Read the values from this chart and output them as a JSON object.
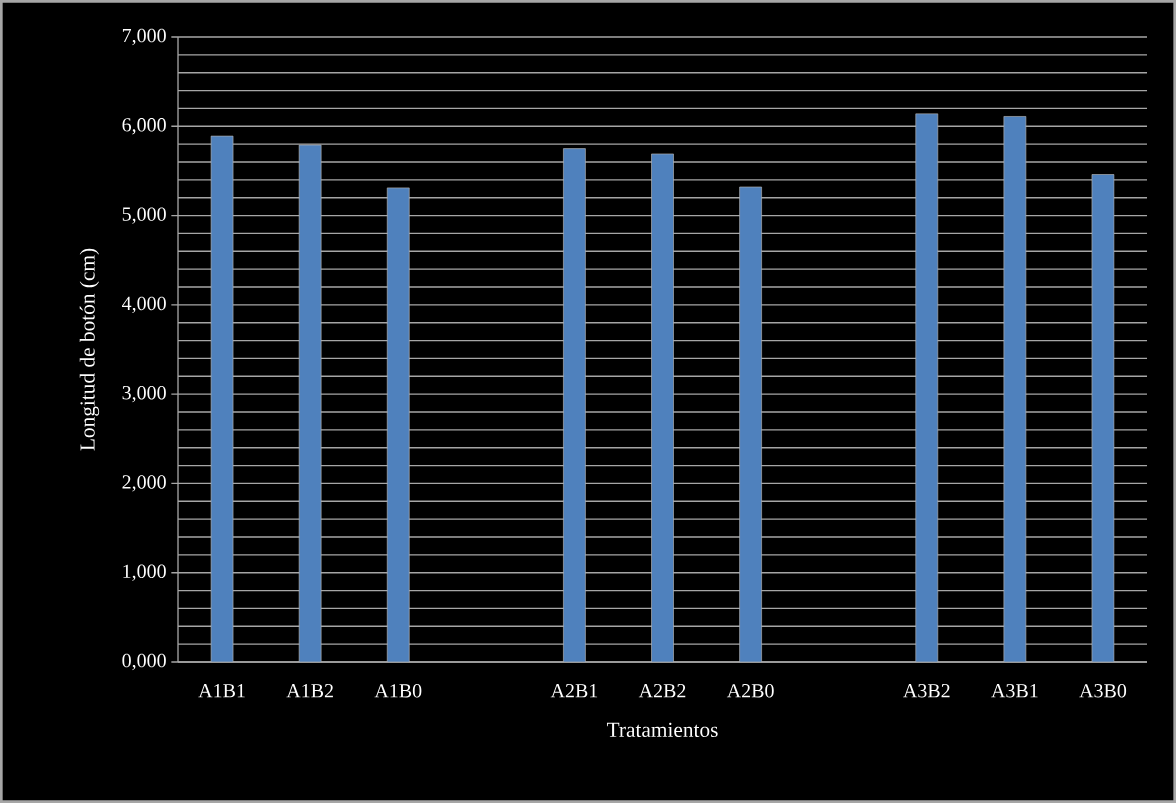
{
  "chart_data": {
    "type": "bar",
    "xlabel": "Tratamientos",
    "ylabel": "Longitud de botón (cm)",
    "categories": [
      "A1B1",
      "A1B2",
      "A1B0",
      null,
      "A2B1",
      "A2B2",
      "A2B0",
      null,
      "A3B2",
      "A3B1",
      "A3B0"
    ],
    "values": [
      5890,
      5790,
      5310,
      null,
      5750,
      5690,
      5320,
      null,
      6140,
      6110,
      5460
    ],
    "color": "#4f81bd",
    "ylim": [
      0,
      7000
    ],
    "yticks": [
      {
        "value": 0,
        "label": "0,000"
      },
      {
        "value": 200,
        "label": null
      },
      {
        "value": 400,
        "label": null
      },
      {
        "value": 600,
        "label": null
      },
      {
        "value": 800,
        "label": null
      },
      {
        "value": 1000,
        "label": "1,000"
      },
      {
        "value": 1200,
        "label": null
      },
      {
        "value": 1400,
        "label": null
      },
      {
        "value": 1600,
        "label": null
      },
      {
        "value": 1800,
        "label": null
      },
      {
        "value": 2000,
        "label": "2,000"
      },
      {
        "value": 2200,
        "label": null
      },
      {
        "value": 2400,
        "label": null
      },
      {
        "value": 2600,
        "label": null
      },
      {
        "value": 2800,
        "label": null
      },
      {
        "value": 3000,
        "label": "3,000"
      },
      {
        "value": 3200,
        "label": null
      },
      {
        "value": 3400,
        "label": null
      },
      {
        "value": 3600,
        "label": null
      },
      {
        "value": 3800,
        "label": null
      },
      {
        "value": 4000,
        "label": "4,000"
      },
      {
        "value": 4200,
        "label": null
      },
      {
        "value": 4400,
        "label": null
      },
      {
        "value": 4600,
        "label": null
      },
      {
        "value": 4800,
        "label": null
      },
      {
        "value": 5000,
        "label": "5,000"
      },
      {
        "value": 5200,
        "label": null
      },
      {
        "value": 5400,
        "label": null
      },
      {
        "value": 5600,
        "label": null
      },
      {
        "value": 5800,
        "label": null
      },
      {
        "value": 6000,
        "label": "6,000"
      },
      {
        "value": 6200,
        "label": null
      },
      {
        "value": 6400,
        "label": null
      },
      {
        "value": 6600,
        "label": null
      },
      {
        "value": 6800,
        "label": null
      },
      {
        "value": 7000,
        "label": "7,000"
      }
    ],
    "grid": true
  }
}
